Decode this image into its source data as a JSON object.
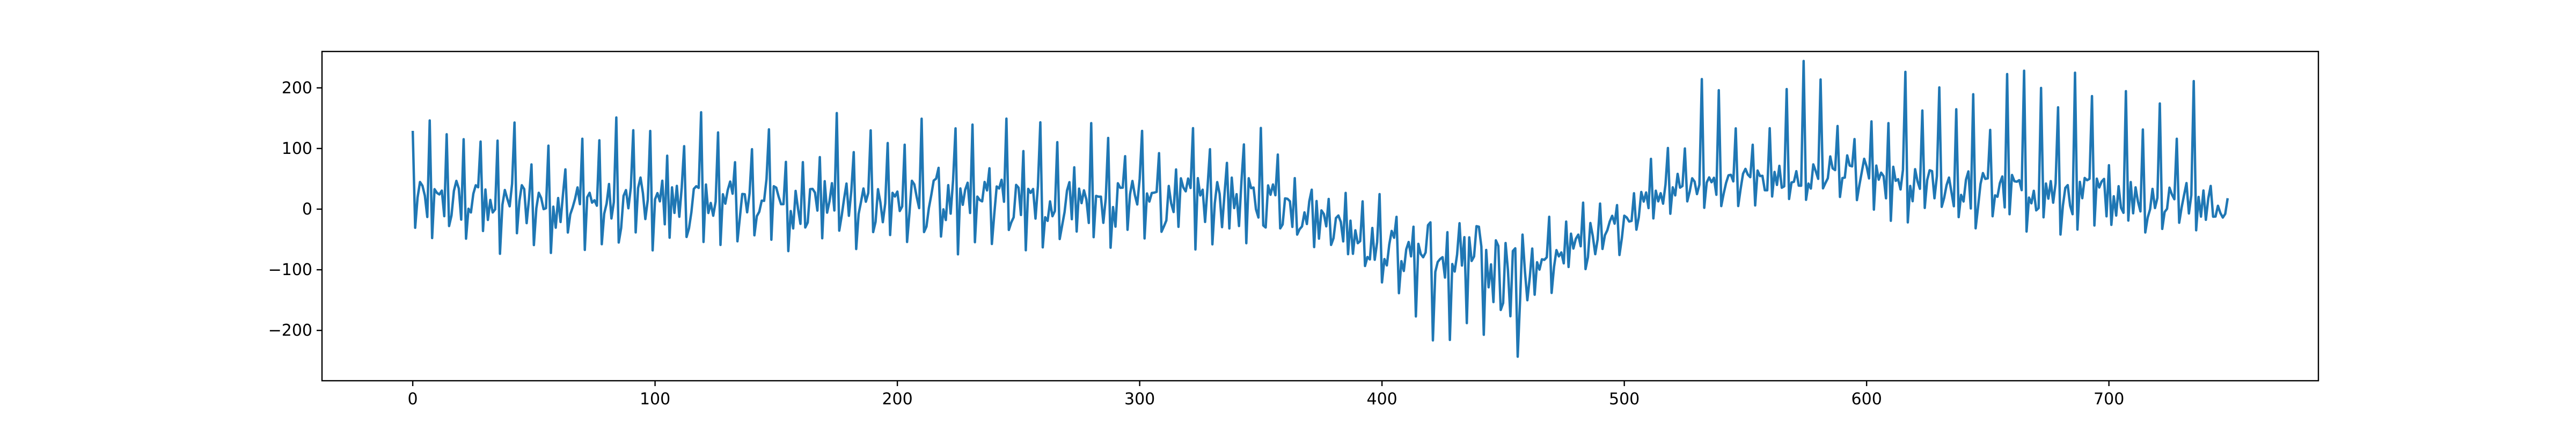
{
  "chart_data": {
    "type": "line",
    "title": "",
    "xlabel": "",
    "ylabel": "",
    "xlim": [
      -37.45,
      786.45
    ],
    "ylim": [
      -283,
      260
    ],
    "x_ticks": [
      0,
      100,
      200,
      300,
      400,
      500,
      600,
      700
    ],
    "y_ticks": [
      -200,
      -100,
      0,
      100,
      200
    ],
    "x_tick_labels": [
      "0",
      "100",
      "200",
      "300",
      "400",
      "500",
      "600",
      "700"
    ],
    "y_tick_labels": [
      "−200",
      "−100",
      "0",
      "100",
      "200"
    ],
    "grid": false,
    "legend": "none",
    "line_color": "#1f77b4",
    "x_start": 0,
    "x_step": 1,
    "segments": [
      {
        "x_from": 0,
        "x_to": 30,
        "base_start": 10,
        "base_end": 10,
        "amp_low": 70,
        "amp_high": 145,
        "dip_amp": 70
      },
      {
        "x_from": 30,
        "x_to": 360,
        "base_start": 10,
        "base_end": 10,
        "amp_low": 55,
        "amp_high": 150,
        "dip_amp": 85
      },
      {
        "x_from": 360,
        "x_to": 410,
        "base_start": 5,
        "base_end": -75,
        "amp_low": 40,
        "amp_high": 85,
        "dip_amp": 70
      },
      {
        "x_from": 410,
        "x_to": 460,
        "base_start": -75,
        "base_end": -110,
        "amp_low": 30,
        "amp_high": 70,
        "dip_amp": 145
      },
      {
        "x_from": 460,
        "x_to": 520,
        "base_start": -110,
        "base_end": 30,
        "amp_low": 30,
        "amp_high": 80,
        "dip_amp": 60
      },
      {
        "x_from": 520,
        "x_to": 600,
        "base_start": 35,
        "base_end": 55,
        "amp_low": 60,
        "amp_high": 205,
        "dip_amp": 40
      },
      {
        "x_from": 600,
        "x_to": 740,
        "base_start": 40,
        "base_end": 15,
        "amp_low": 50,
        "amp_high": 205,
        "dip_amp": 70
      },
      {
        "x_from": 740,
        "x_to": 749,
        "base_start": 10,
        "base_end": -15,
        "amp_low": 30,
        "amp_high": 80,
        "dip_amp": 25
      }
    ],
    "period": 7
  }
}
